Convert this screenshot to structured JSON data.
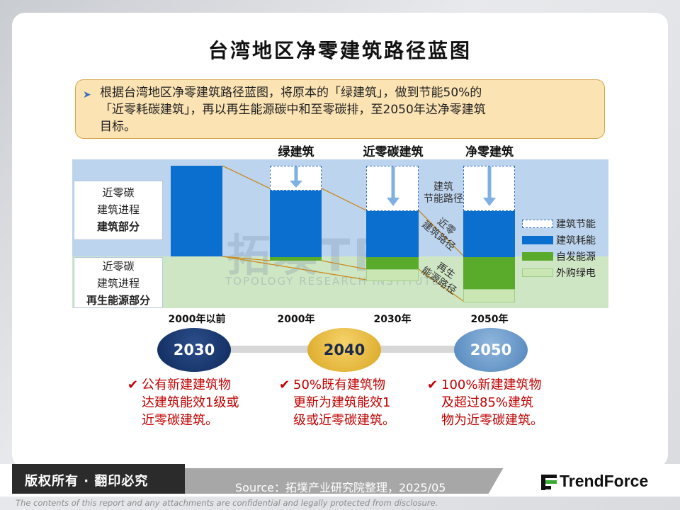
{
  "title": "台湾地区净零建筑路径蓝图",
  "intro": {
    "line1": "根据台湾地区净零建筑路径蓝图，将原本的「绿建筑」，做到节能50%的",
    "line2": "「近零耗碳建筑」，再以再生能源碳中和至零碳排，至2050年达净零建筑",
    "line3": "目标。"
  },
  "stage_headers": [
    "绿建筑",
    "近零碳建筑",
    "净零建筑"
  ],
  "left_boxes": {
    "top": {
      "line1": "近零碳",
      "line2": "建筑进程",
      "line3": "建筑部分"
    },
    "bottom": {
      "line1": "近零碳",
      "line2": "建筑进程",
      "line3": "再生能源部分"
    }
  },
  "x_labels": [
    "2000年以前",
    "2000年",
    "2030年",
    "2050年"
  ],
  "path_notes": {
    "energy_saving": [
      "建筑",
      "节能路径"
    ],
    "near_zero": [
      "近零",
      "建筑路径"
    ],
    "renewable": [
      "再生",
      "能源路径"
    ]
  },
  "legend": [
    {
      "label": "建筑节能",
      "color": "#ffffff"
    },
    {
      "label": "建筑耗能",
      "color": "#0b6fd0"
    },
    {
      "label": "自发能源",
      "color": "#5aab2c"
    },
    {
      "label": "外购绿电",
      "color": "#c9e6b3"
    }
  ],
  "watermark": {
    "main": "拓墣TRI",
    "sub": "TOPOLOGY RESEARCH INSTITUTE"
  },
  "milestones": [
    {
      "year": "2030",
      "color": "#0e2a5c",
      "text": [
        "公有新建建筑物",
        "达建筑能效1级或",
        "近零碳建筑。"
      ]
    },
    {
      "year": "2040",
      "color": "#e3b32d",
      "text": [
        "50%既有建筑物",
        "更新为建筑能效1",
        "级或近零碳建筑。"
      ]
    },
    {
      "year": "2050",
      "color": "#5f92c4",
      "text": [
        "100%新建建筑物",
        "及超过85%建筑",
        "物为近零碳建筑。"
      ]
    }
  ],
  "footer": {
    "copyright": "版权所有 · 翻印必究",
    "source": "Source：拓墣产业研究院整理，2025/05",
    "logo": "TrendForce",
    "disclaimer": "The contents of this report and any attachments are confidential and legally protected from disclosure."
  }
}
